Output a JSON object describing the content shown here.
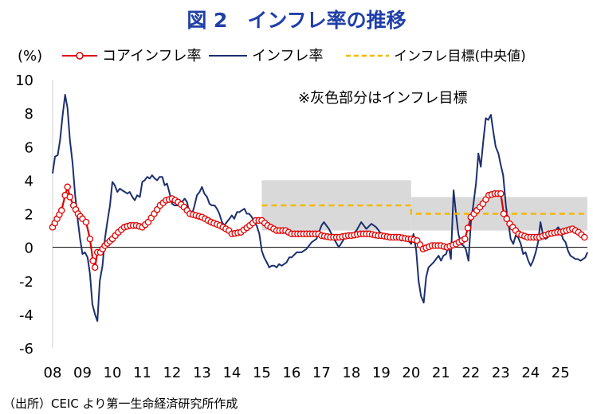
{
  "title": "図 2　インフレ率の推移",
  "source": "（出所）CEIC より第一生命経済研究所作成",
  "colors": {
    "core": "#e00000",
    "headline": "#1c2f6e",
    "target": "#f5b800",
    "band": "#d9d9d9",
    "title": "#1f3fa8"
  },
  "chart_data": {
    "type": "line",
    "y_unit_label": "(%)",
    "ylim": [
      -6,
      10
    ],
    "yticks": [
      -6,
      -4,
      -2,
      0,
      2,
      4,
      6,
      8,
      10
    ],
    "x_range": [
      2008.0,
      2025.9
    ],
    "xticks": [
      {
        "label": "08",
        "x": 2008.0
      },
      {
        "label": "09",
        "x": 2009.0
      },
      {
        "label": "10",
        "x": 2010.0
      },
      {
        "label": "11",
        "x": 2011.0
      },
      {
        "label": "12",
        "x": 2012.0
      },
      {
        "label": "13",
        "x": 2013.0
      },
      {
        "label": "14",
        "x": 2014.0
      },
      {
        "label": "15",
        "x": 2015.0
      },
      {
        "label": "16",
        "x": 2016.0
      },
      {
        "label": "17",
        "x": 2017.0
      },
      {
        "label": "18",
        "x": 2018.0
      },
      {
        "label": "19",
        "x": 2019.0
      },
      {
        "label": "20",
        "x": 2020.0
      },
      {
        "label": "21",
        "x": 2021.0
      },
      {
        "label": "22",
        "x": 2022.0
      },
      {
        "label": "23",
        "x": 2023.0
      },
      {
        "label": "24",
        "x": 2024.0
      },
      {
        "label": "25",
        "x": 2025.0
      }
    ],
    "grid": false,
    "legend_position": "top",
    "annotation": "※灰色部分はインフレ目標",
    "series": [
      {
        "name": "コアインフレ率",
        "style": "line-with-circle-markers",
        "points": [
          [
            2008.0,
            1.2
          ],
          [
            2008.15,
            1.7
          ],
          [
            2008.3,
            2.2
          ],
          [
            2008.42,
            3.1
          ],
          [
            2008.5,
            3.6
          ],
          [
            2008.58,
            3.0
          ],
          [
            2008.7,
            2.5
          ],
          [
            2008.85,
            2.0
          ],
          [
            2009.0,
            1.7
          ],
          [
            2009.12,
            1.5
          ],
          [
            2009.25,
            0.5
          ],
          [
            2009.35,
            -0.8
          ],
          [
            2009.42,
            -1.2
          ],
          [
            2009.5,
            -0.3
          ],
          [
            2009.6,
            -0.3
          ],
          [
            2009.75,
            0.1
          ],
          [
            2010.0,
            0.5
          ],
          [
            2010.2,
            0.9
          ],
          [
            2010.4,
            1.2
          ],
          [
            2010.6,
            1.3
          ],
          [
            2010.8,
            1.3
          ],
          [
            2011.0,
            1.2
          ],
          [
            2011.2,
            1.5
          ],
          [
            2011.4,
            2.0
          ],
          [
            2011.6,
            2.5
          ],
          [
            2011.8,
            2.8
          ],
          [
            2012.0,
            2.9
          ],
          [
            2012.2,
            2.7
          ],
          [
            2012.4,
            2.4
          ],
          [
            2012.6,
            2.0
          ],
          [
            2012.8,
            1.9
          ],
          [
            2013.0,
            1.8
          ],
          [
            2013.3,
            1.5
          ],
          [
            2013.6,
            1.3
          ],
          [
            2013.9,
            1.0
          ],
          [
            2014.0,
            0.8
          ],
          [
            2014.3,
            0.9
          ],
          [
            2014.6,
            1.3
          ],
          [
            2014.8,
            1.6
          ],
          [
            2015.0,
            1.6
          ],
          [
            2015.2,
            1.3
          ],
          [
            2015.5,
            1.0
          ],
          [
            2015.8,
            1.0
          ],
          [
            2016.0,
            0.8
          ],
          [
            2016.3,
            0.8
          ],
          [
            2016.6,
            0.8
          ],
          [
            2016.9,
            0.8
          ],
          [
            2017.0,
            0.7
          ],
          [
            2017.3,
            0.6
          ],
          [
            2017.6,
            0.6
          ],
          [
            2017.9,
            0.7
          ],
          [
            2018.0,
            0.7
          ],
          [
            2018.3,
            0.8
          ],
          [
            2018.6,
            0.8
          ],
          [
            2018.9,
            0.7
          ],
          [
            2019.0,
            0.7
          ],
          [
            2019.3,
            0.6
          ],
          [
            2019.6,
            0.6
          ],
          [
            2019.9,
            0.5
          ],
          [
            2020.0,
            0.5
          ],
          [
            2020.2,
            0.4
          ],
          [
            2020.4,
            -0.1
          ],
          [
            2020.7,
            0.1
          ],
          [
            2021.0,
            0.1
          ],
          [
            2021.2,
            0.0
          ],
          [
            2021.5,
            0.2
          ],
          [
            2021.8,
            0.5
          ],
          [
            2022.0,
            1.8
          ],
          [
            2022.2,
            2.2
          ],
          [
            2022.4,
            2.6
          ],
          [
            2022.6,
            3.1
          ],
          [
            2022.8,
            3.2
          ],
          [
            2023.0,
            3.2
          ],
          [
            2023.1,
            2.0
          ],
          [
            2023.3,
            1.4
          ],
          [
            2023.6,
            0.8
          ],
          [
            2023.9,
            0.6
          ],
          [
            2024.0,
            0.6
          ],
          [
            2024.3,
            0.6
          ],
          [
            2024.6,
            0.8
          ],
          [
            2024.9,
            0.9
          ],
          [
            2025.0,
            0.9
          ],
          [
            2025.2,
            1.0
          ],
          [
            2025.4,
            1.1
          ],
          [
            2025.6,
            0.9
          ],
          [
            2025.8,
            0.6
          ]
        ]
      },
      {
        "name": "インフレ率",
        "style": "line",
        "points": [
          [
            2008.0,
            4.4
          ],
          [
            2008.08,
            5.4
          ],
          [
            2008.17,
            5.5
          ],
          [
            2008.25,
            6.4
          ],
          [
            2008.33,
            7.8
          ],
          [
            2008.42,
            9.1
          ],
          [
            2008.5,
            8.3
          ],
          [
            2008.58,
            6.4
          ],
          [
            2008.67,
            5.0
          ],
          [
            2008.75,
            3.2
          ],
          [
            2008.83,
            1.8
          ],
          [
            2008.92,
            0.5
          ],
          [
            2009.0,
            -0.4
          ],
          [
            2009.08,
            -0.3
          ],
          [
            2009.17,
            -0.6
          ],
          [
            2009.25,
            -1.6
          ],
          [
            2009.33,
            -3.4
          ],
          [
            2009.42,
            -4.0
          ],
          [
            2009.5,
            -4.4
          ],
          [
            2009.58,
            -2.0
          ],
          [
            2009.67,
            -1.1
          ],
          [
            2009.75,
            0.5
          ],
          [
            2009.83,
            1.5
          ],
          [
            2009.92,
            2.5
          ],
          [
            2010.0,
            3.9
          ],
          [
            2010.08,
            3.7
          ],
          [
            2010.17,
            3.3
          ],
          [
            2010.25,
            3.5
          ],
          [
            2010.33,
            3.4
          ],
          [
            2010.42,
            3.3
          ],
          [
            2010.5,
            3.2
          ],
          [
            2010.58,
            3.3
          ],
          [
            2010.67,
            3.0
          ],
          [
            2010.75,
            2.8
          ],
          [
            2010.83,
            3.1
          ],
          [
            2010.92,
            3.0
          ],
          [
            2011.0,
            3.9
          ],
          [
            2011.08,
            4.0
          ],
          [
            2011.17,
            4.2
          ],
          [
            2011.25,
            4.1
          ],
          [
            2011.33,
            4.3
          ],
          [
            2011.42,
            4.1
          ],
          [
            2011.5,
            4.0
          ],
          [
            2011.58,
            4.2
          ],
          [
            2011.67,
            4.2
          ],
          [
            2011.75,
            3.7
          ],
          [
            2011.83,
            3.8
          ],
          [
            2011.92,
            3.2
          ],
          [
            2012.0,
            2.6
          ],
          [
            2012.08,
            2.5
          ],
          [
            2012.17,
            2.5
          ],
          [
            2012.25,
            2.6
          ],
          [
            2012.33,
            2.7
          ],
          [
            2012.42,
            2.9
          ],
          [
            2012.5,
            2.7
          ],
          [
            2012.58,
            2.0
          ],
          [
            2012.67,
            2.0
          ],
          [
            2012.75,
            2.5
          ],
          [
            2012.83,
            3.1
          ],
          [
            2012.92,
            3.3
          ],
          [
            2013.0,
            3.6
          ],
          [
            2013.08,
            3.2
          ],
          [
            2013.17,
            3.0
          ],
          [
            2013.25,
            2.6
          ],
          [
            2013.33,
            2.5
          ],
          [
            2013.42,
            2.5
          ],
          [
            2013.5,
            2.3
          ],
          [
            2013.58,
            2.0
          ],
          [
            2013.67,
            1.5
          ],
          [
            2013.75,
            1.3
          ],
          [
            2013.83,
            1.5
          ],
          [
            2013.92,
            1.7
          ],
          [
            2014.0,
            1.9
          ],
          [
            2014.08,
            1.7
          ],
          [
            2014.17,
            2.1
          ],
          [
            2014.25,
            2.1
          ],
          [
            2014.33,
            2.2
          ],
          [
            2014.42,
            2.3
          ],
          [
            2014.5,
            2.0
          ],
          [
            2014.58,
            2.0
          ],
          [
            2014.67,
            1.8
          ],
          [
            2014.75,
            1.5
          ],
          [
            2014.83,
            1.3
          ],
          [
            2014.92,
            0.8
          ],
          [
            2015.0,
            -0.2
          ],
          [
            2015.08,
            -0.6
          ],
          [
            2015.17,
            -0.9
          ],
          [
            2015.25,
            -1.2
          ],
          [
            2015.33,
            -1.1
          ],
          [
            2015.42,
            -1.1
          ],
          [
            2015.5,
            -1.2
          ],
          [
            2015.58,
            -1.0
          ],
          [
            2015.67,
            -1.1
          ],
          [
            2015.75,
            -1.0
          ],
          [
            2015.83,
            -0.9
          ],
          [
            2015.92,
            -0.6
          ],
          [
            2016.0,
            -0.6
          ],
          [
            2016.17,
            -0.3
          ],
          [
            2016.33,
            -0.3
          ],
          [
            2016.5,
            -0.1
          ],
          [
            2016.67,
            0.3
          ],
          [
            2016.83,
            0.5
          ],
          [
            2017.0,
            1.3
          ],
          [
            2017.08,
            1.5
          ],
          [
            2017.25,
            1.1
          ],
          [
            2017.42,
            0.5
          ],
          [
            2017.58,
            0.0
          ],
          [
            2017.75,
            0.5
          ],
          [
            2017.92,
            0.8
          ],
          [
            2018.0,
            0.7
          ],
          [
            2018.17,
            1.0
          ],
          [
            2018.33,
            1.5
          ],
          [
            2018.5,
            1.1
          ],
          [
            2018.67,
            1.4
          ],
          [
            2018.83,
            1.2
          ],
          [
            2019.0,
            0.8
          ],
          [
            2019.17,
            0.6
          ],
          [
            2019.33,
            0.7
          ],
          [
            2019.5,
            0.6
          ],
          [
            2019.67,
            0.4
          ],
          [
            2019.83,
            0.6
          ],
          [
            2020.0,
            0.2
          ],
          [
            2020.08,
            0.8
          ],
          [
            2020.17,
            -0.2
          ],
          [
            2020.25,
            -2.0
          ],
          [
            2020.33,
            -2.9
          ],
          [
            2020.42,
            -3.3
          ],
          [
            2020.5,
            -1.8
          ],
          [
            2020.58,
            -1.2
          ],
          [
            2020.75,
            -0.9
          ],
          [
            2020.92,
            -0.5
          ],
          [
            2021.0,
            -0.8
          ],
          [
            2021.08,
            -0.5
          ],
          [
            2021.17,
            -0.4
          ],
          [
            2021.25,
            0.1
          ],
          [
            2021.33,
            -0.7
          ],
          [
            2021.42,
            3.4
          ],
          [
            2021.5,
            2.0
          ],
          [
            2021.58,
            0.8
          ],
          [
            2021.67,
            0.2
          ],
          [
            2021.75,
            0.1
          ],
          [
            2021.83,
            -0.1
          ],
          [
            2021.92,
            -0.8
          ],
          [
            2022.0,
            1.5
          ],
          [
            2022.08,
            2.5
          ],
          [
            2022.17,
            3.8
          ],
          [
            2022.25,
            5.6
          ],
          [
            2022.33,
            4.8
          ],
          [
            2022.42,
            6.4
          ],
          [
            2022.5,
            7.7
          ],
          [
            2022.58,
            7.6
          ],
          [
            2022.67,
            7.9
          ],
          [
            2022.75,
            6.9
          ],
          [
            2022.83,
            6.0
          ],
          [
            2022.92,
            5.6
          ],
          [
            2023.0,
            4.9
          ],
          [
            2023.08,
            4.3
          ],
          [
            2023.17,
            2.5
          ],
          [
            2023.25,
            1.5
          ],
          [
            2023.33,
            0.5
          ],
          [
            2023.42,
            0.2
          ],
          [
            2023.5,
            0.7
          ],
          [
            2023.58,
            0.6
          ],
          [
            2023.67,
            0.2
          ],
          [
            2023.75,
            -0.4
          ],
          [
            2023.83,
            -0.3
          ],
          [
            2023.92,
            -0.8
          ],
          [
            2024.0,
            -1.1
          ],
          [
            2024.08,
            -0.8
          ],
          [
            2024.17,
            -0.3
          ],
          [
            2024.25,
            0.3
          ],
          [
            2024.33,
            1.5
          ],
          [
            2024.42,
            0.7
          ],
          [
            2024.5,
            0.5
          ],
          [
            2024.58,
            0.6
          ],
          [
            2024.67,
            0.8
          ],
          [
            2024.75,
            0.9
          ],
          [
            2024.83,
            1.0
          ],
          [
            2024.92,
            1.2
          ],
          [
            2025.0,
            1.0
          ],
          [
            2025.08,
            0.5
          ],
          [
            2025.17,
            0.3
          ],
          [
            2025.25,
            -0.2
          ],
          [
            2025.33,
            -0.5
          ],
          [
            2025.42,
            -0.6
          ],
          [
            2025.5,
            -0.7
          ],
          [
            2025.58,
            -0.7
          ],
          [
            2025.67,
            -0.8
          ],
          [
            2025.75,
            -0.7
          ],
          [
            2025.83,
            -0.6
          ],
          [
            2025.9,
            -0.3
          ]
        ]
      },
      {
        "name": "インフレ目標(中央値)",
        "style": "dashed",
        "points": [
          [
            2015.0,
            2.5
          ],
          [
            2020.0,
            2.5
          ],
          [
            2020.0,
            2.0
          ],
          [
            2025.9,
            2.0
          ]
        ]
      }
    ],
    "target_band": [
      {
        "x_start": 2015.0,
        "x_end": 2020.0,
        "low": 1.0,
        "high": 4.0
      },
      {
        "x_start": 2020.0,
        "x_end": 2025.9,
        "low": 1.0,
        "high": 3.0
      }
    ]
  }
}
